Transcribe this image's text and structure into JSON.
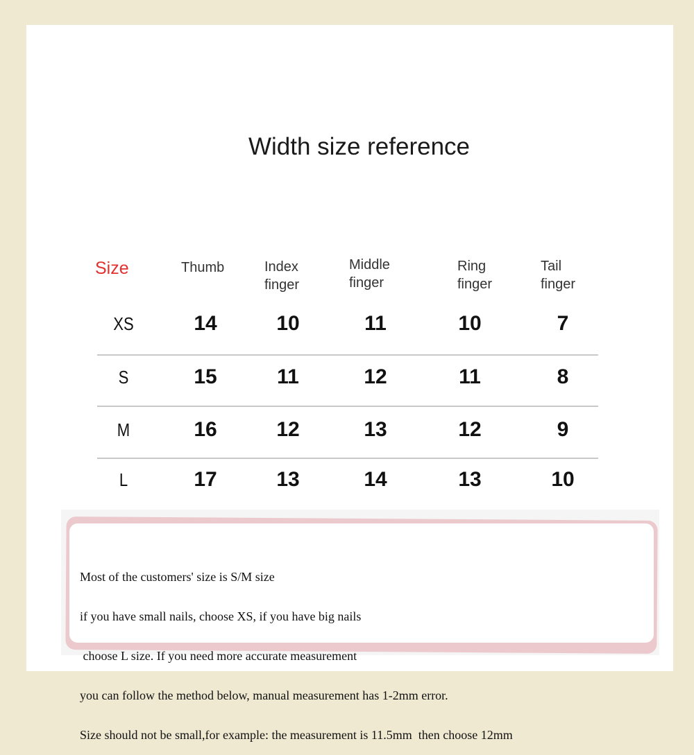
{
  "title": "Width size reference",
  "table": {
    "headers": [
      "Size",
      "Thumb",
      "Index\nfinger",
      "Middle\nfinger",
      "Ring\nfinger",
      "Tail\nfinger"
    ],
    "header_lines": [
      [
        "Size"
      ],
      [
        "Thumb"
      ],
      [
        "Index",
        "finger"
      ],
      [
        "Middle",
        "finger"
      ],
      [
        "Ring",
        "finger"
      ],
      [
        "Tail",
        "finger"
      ]
    ],
    "rows": [
      {
        "size": "XS",
        "values": [
          "14",
          "10",
          "11",
          "10",
          "7"
        ]
      },
      {
        "size": "S",
        "values": [
          "15",
          "11",
          "12",
          "11",
          "8"
        ]
      },
      {
        "size": "M",
        "values": [
          "16",
          "12",
          "13",
          "12",
          "9"
        ]
      },
      {
        "size": "L",
        "values": [
          "17",
          "13",
          "14",
          "13",
          "10"
        ]
      }
    ],
    "unit_note": ""
  },
  "note": {
    "lines": [
      "Most of the customers' size is S/M size",
      "if you have small nails, choose XS, if you have big nails",
      " choose L size. If you need more accurate measurement",
      "you can follow the method below, manual measurement has 1-2mm error.",
      "Size should not be small,for example: the measurement is 11.5mm  then choose 12mm"
    ]
  },
  "colors": {
    "size_header": "#e03030",
    "frame": "#efe9d2",
    "note_border": "#ecc9cd"
  }
}
